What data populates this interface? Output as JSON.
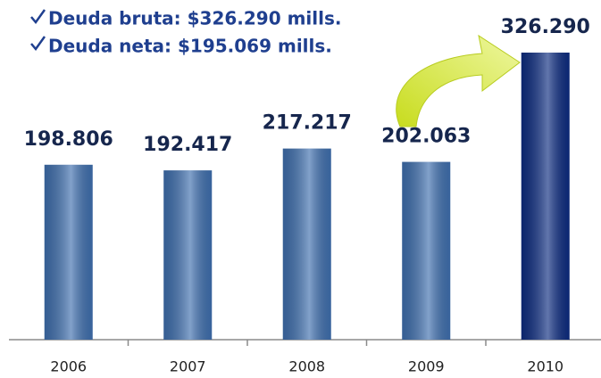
{
  "chart_data": {
    "type": "bar",
    "annotations": [
      "Deuda bruta: $326.290 mills.",
      "Deuda neta: $195.069 mills."
    ],
    "categories": [
      "2006",
      "2007",
      "2008",
      "2009",
      "2010"
    ],
    "values": [
      198806,
      192417,
      217217,
      202063,
      326290
    ],
    "value_labels": [
      "198.806",
      "192.417",
      "217.217",
      "202.063",
      "326.290"
    ],
    "colors": [
      "#3f6fae",
      "#3f6fae",
      "#3f6fae",
      "#3f6fae",
      "#0d2c80"
    ]
  }
}
